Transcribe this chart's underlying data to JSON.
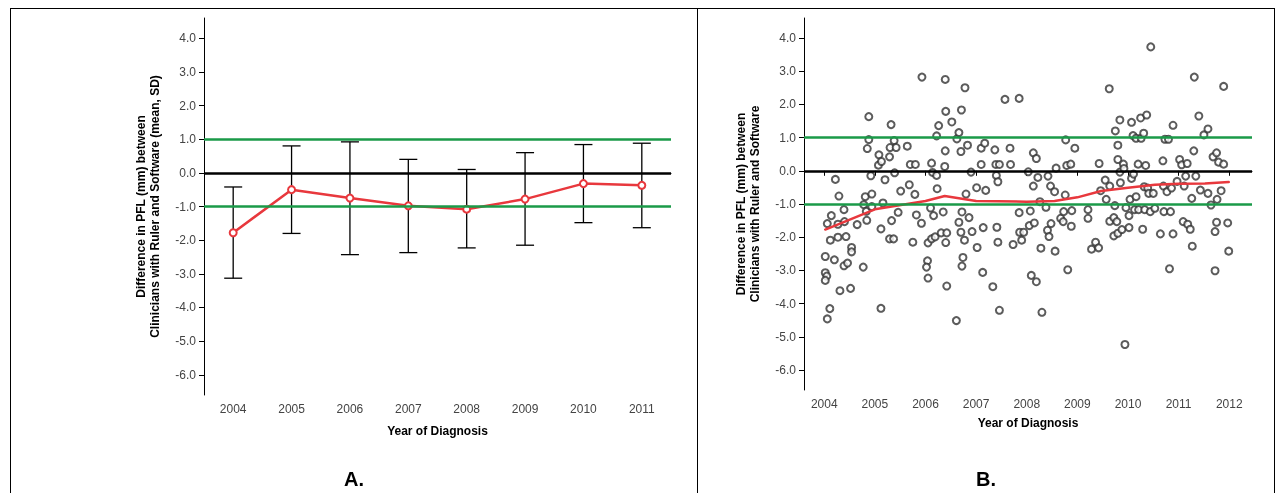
{
  "chart_data": [
    {
      "type": "line",
      "categories": [
        "2004",
        "2005",
        "2006",
        "2007",
        "2008",
        "2009",
        "2010",
        "2011"
      ],
      "series": [
        {
          "color": "#e8383d",
          "values": [
            -1.78,
            -0.5,
            -0.75,
            -0.98,
            -1.08,
            -0.78,
            -0.32,
            -0.37
          ],
          "errors": [
            [
              -3.13,
              -0.42
            ],
            [
              -1.8,
              0.8
            ],
            [
              -2.43,
              0.92
            ],
            [
              -2.37,
              0.4
            ],
            [
              -2.23,
              0.1
            ],
            [
              -2.15,
              0.6
            ],
            [
              -1.48,
              0.84
            ],
            [
              -1.63,
              0.88
            ]
          ]
        }
      ],
      "marker": "circle",
      "xlabel": "Year of Diagnosis",
      "ylabel": "Difference in PFL (mm) between\nClinicians with Ruler and Software (mean, SD)",
      "ylim": [
        -6.6,
        4.6
      ],
      "yticks": [
        {
          "value": -6,
          "label": "-6.0"
        },
        {
          "value": -5,
          "label": "-5.0"
        },
        {
          "value": -4,
          "label": "-4.0"
        },
        {
          "value": -3,
          "label": "-3.0"
        },
        {
          "value": -2,
          "label": "-2.0"
        },
        {
          "value": -1,
          "label": "-1.0"
        },
        {
          "value": 0,
          "label": "0.0"
        },
        {
          "value": 1,
          "label": "1.0"
        },
        {
          "value": 2,
          "label": "2.0"
        },
        {
          "value": 3,
          "label": "3.0"
        },
        {
          "value": 4,
          "label": "4.0"
        }
      ],
      "ref_lines": [
        {
          "axis": "y",
          "value": 1,
          "color": "#1a9a48"
        },
        {
          "axis": "y",
          "value": 0,
          "color": "#000000"
        },
        {
          "axis": "y",
          "value": -1,
          "color": "#1a9a48"
        }
      ],
      "annotations": [
        "A."
      ]
    },
    {
      "type": "scatter",
      "series": [
        {
          "type": "scatter",
          "color": "#333333",
          "marker": "circle",
          "x": [
            2004.02,
            2004.02,
            2004.05,
            2004.02,
            2004.06,
            2004.11,
            2004.06,
            2004.12,
            2004.14,
            2004.2,
            2004.22,
            2004.27,
            2004.27,
            2004.29,
            2004.31,
            2004.39,
            2004.4,
            2004.43,
            2004.39,
            2004.46,
            2004.52,
            2004.54,
            2004.54,
            2004.65,
            2004.77,
            2004.78,
            2004.81,
            2004.83,
            2004.84,
            2004.85,
            2004.88,
            2004.88,
            2004.92,
            2004.94,
            2004.94,
            2005.08,
            2005.07,
            2005.13,
            2005.12,
            2005.12,
            2005.16,
            2005.2,
            2005.29,
            2005.3,
            2005.32,
            2005.33,
            2005.29,
            2005.37,
            2005.38,
            2005.39,
            2005.42,
            2005.46,
            2005.51,
            2005.64,
            2005.68,
            2005.7,
            2005.8,
            2005.75,
            2005.79,
            2005.82,
            2005.92,
            2005.93,
            2006.04,
            2006.02,
            2006.05,
            2006.05,
            2006.1,
            2006.12,
            2006.12,
            2006.14,
            2006.16,
            2006.19,
            2006.22,
            2006.22,
            2006.23,
            2006.26,
            2006.31,
            2006.35,
            2006.38,
            2006.39,
            2006.39,
            2006.4,
            2006.4,
            2006.42,
            2006.42,
            2006.52,
            2006.61,
            2006.62,
            2006.66,
            2006.66,
            2006.7,
            2006.7,
            2006.71,
            2006.72,
            2006.72,
            2006.74,
            2006.77,
            2006.78,
            2006.8,
            2006.83,
            2006.86,
            2006.9,
            2006.92,
            2007.01,
            2007.02,
            2007.1,
            2007.1,
            2007.13,
            2007.14,
            2007.17,
            2007.19,
            2007.33,
            2007.37,
            2007.39,
            2007.4,
            2007.41,
            2007.43,
            2007.43,
            2007.46,
            2007.46,
            2007.57,
            2007.85,
            2007.67,
            2007.68,
            2007.73,
            2007.85,
            2007.86,
            2007.9,
            2007.94,
            2008.03,
            2008.05,
            2008.07,
            2008.09,
            2008.13,
            2008.13,
            2008.15,
            2008.19,
            2008.19,
            2008.22,
            2008.26,
            2008.28,
            2008.3,
            2008.38,
            2008.41,
            2008.42,
            2008.44,
            2008.47,
            2008.48,
            2008.55,
            2008.56,
            2008.58,
            2008.67,
            2008.72,
            2008.73,
            2008.76,
            2008.77,
            2008.79,
            2008.81,
            2008.87,
            2008.88,
            2008.89,
            2008.95,
            2009.21,
            2009.21,
            2009.28,
            2009.36,
            2009.42,
            2009.43,
            2009.46,
            2009.55,
            2009.57,
            2009.63,
            2009.64,
            2009.64,
            2009.72,
            2009.72,
            2009.74,
            2009.75,
            2009.78,
            2009.8,
            2009.8,
            2009.8,
            2009.84,
            2009.84,
            2009.85,
            2009.88,
            2009.91,
            2009.92,
            2009.94,
            2009.96,
            2010.02,
            2010.02,
            2010.04,
            2010.07,
            2010.07,
            2010.1,
            2010.11,
            2010.13,
            2010.16,
            2010.16,
            2010.2,
            2010.21,
            2010.25,
            2010.26,
            2010.29,
            2010.31,
            2010.32,
            2010.33,
            2010.35,
            2010.37,
            2010.39,
            2010.41,
            2010.44,
            2010.45,
            2010.5,
            2010.53,
            2010.64,
            2010.69,
            2010.7,
            2010.71,
            2010.73,
            2010.77,
            2010.8,
            2010.82,
            2010.84,
            2010.86,
            2010.89,
            2010.89,
            2010.97,
            2011.02,
            2011.06,
            2011.09,
            2011.11,
            2011.14,
            2011.17,
            2011.18,
            2011.23,
            2011.26,
            2011.27,
            2011.3,
            2011.31,
            2011.34,
            2011.4,
            2011.43,
            2011.5,
            2011.58,
            2011.58,
            2011.64,
            2011.68,
            2011.72,
            2011.72,
            2011.75,
            2011.75,
            2011.76,
            2011.79,
            2011.84,
            2011.89,
            2011.89,
            2011.97,
            2011.99
          ],
          "values": [
            -2.58,
            -3.07,
            -3.17,
            -3.3,
            -4.46,
            -4.15,
            -1.59,
            -2.09,
            -1.35,
            -2.68,
            -0.26,
            -1.61,
            -2.0,
            -0.76,
            -3.61,
            -1.17,
            -1.53,
            -1.98,
            -2.86,
            -2.78,
            -3.54,
            -2.31,
            -2.44,
            -1.62,
            -2.9,
            -1.02,
            -0.78,
            -1.22,
            -1.49,
            0.67,
            1.63,
            0.94,
            -0.15,
            -0.7,
            -1.08,
            0.48,
            0.17,
            0.28,
            -1.75,
            -4.14,
            -0.97,
            -0.27,
            0.42,
            0.7,
            1.39,
            -1.5,
            -2.05,
            -2.05,
            0.91,
            -0.06,
            0.7,
            -1.25,
            -0.61,
            0.74,
            -0.42,
            0.19,
            0.19,
            -2.15,
            -0.71,
            -1.33,
            -1.58,
            2.82,
            -2.71,
            -2.9,
            -3.23,
            -2.17,
            -1.12,
            -2.05,
            0.23,
            -0.05,
            -1.35,
            -1.99,
            1.05,
            -0.14,
            -0.54,
            1.36,
            -1.87,
            -1.24,
            0.13,
            2.75,
            0.6,
            1.79,
            -2.16,
            -1.87,
            -3.47,
            1.47,
            -4.51,
            0.96,
            1.15,
            -1.55,
            0.58,
            -1.85,
            1.83,
            -1.24,
            -2.87,
            -2.61,
            -2.09,
            2.5,
            -0.7,
            0.77,
            -1.41,
            -0.04,
            -1.83,
            -0.51,
            -2.31,
            0.19,
            0.68,
            -3.06,
            -1.71,
            0.83,
            -0.59,
            -3.49,
            0.63,
            0.19,
            -0.14,
            -1.7,
            -2.15,
            -0.33,
            -4.2,
            0.19,
            2.15,
            2.18,
            0.68,
            0.19,
            -2.22,
            -1.26,
            -1.85,
            -2.09,
            -1.85,
            -0.03,
            -1.65,
            -1.21,
            -3.15,
            0.54,
            -0.46,
            -1.57,
            -3.34,
            0.37,
            -0.2,
            -0.93,
            -2.33,
            -4.26,
            -1.1,
            -1.79,
            -0.16,
            -1.98,
            -0.46,
            -1.59,
            -0.63,
            -2.42,
            0.08,
            -1.43,
            -1.53,
            -1.23,
            -0.73,
            0.93,
            0.16,
            -2.98,
            0.2,
            -1.67,
            -1.2,
            0.68,
            -1.43,
            -1.17,
            -2.36,
            -2.15,
            -2.32,
            0.22,
            -0.6,
            -0.28,
            -0.86,
            2.47,
            -1.52,
            -0.46,
            -1.41,
            -1.96,
            -1.05,
            1.2,
            -1.53,
            0.77,
            -1.88,
            0.34,
            1.53,
            -0.04,
            -0.36,
            -1.77,
            0.2,
            0.07,
            -5.23,
            -1.11,
            -1.35,
            -1.71,
            -0.86,
            1.46,
            -0.23,
            1.06,
            -0.1,
            -1.17,
            -0.78,
            0.98,
            0.2,
            -1.17,
            1.59,
            0.98,
            -1.76,
            1.13,
            -0.48,
            -1.17,
            0.16,
            1.68,
            -0.52,
            -0.68,
            -1.23,
            3.73,
            -0.68,
            -1.13,
            -1.9,
            0.3,
            -0.46,
            -1.23,
            0.95,
            -0.63,
            0.95,
            -2.95,
            -1.23,
            -0.52,
            1.37,
            -1.9,
            -0.32,
            0.34,
            0.18,
            -1.53,
            -0.46,
            -0.16,
            0.22,
            -1.61,
            -1.76,
            -0.83,
            -2.27,
            0.6,
            2.82,
            -0.16,
            1.65,
            -0.58,
            1.08,
            1.26,
            -0.68,
            -1.03,
            0.42,
            -3.01,
            -1.83,
            -1.55,
            0.54,
            -0.86,
            0.26,
            -0.6,
            2.54,
            0.2,
            -1.57,
            -2.42
          ]
        },
        {
          "type": "line",
          "color": "#e8383d",
          "marker": "none",
          "x": [
            2004.02,
            2005,
            2006,
            2006.38,
            2007,
            2008,
            2008.55,
            2009,
            2009.47,
            2010,
            2010.53,
            2011,
            2011.52,
            2011.99
          ],
          "values": [
            -1.77,
            -1.16,
            -0.91,
            -0.76,
            -0.91,
            -0.93,
            -0.91,
            -0.8,
            -0.61,
            -0.51,
            -0.42,
            -0.39,
            -0.38,
            -0.34
          ]
        }
      ],
      "xlabel": "Year of Diagnosis",
      "ylabel": "Difference in PFL (mm) between\nClinicians with Ruler and Software",
      "xlim": [
        2003.6,
        2012.45
      ],
      "xticks": [
        2004,
        2005,
        2006,
        2007,
        2008,
        2009,
        2010,
        2011,
        2012
      ],
      "ylim": [
        -6.6,
        4.6
      ],
      "yticks": [
        {
          "value": -6,
          "label": "-6.0"
        },
        {
          "value": -5,
          "label": "-5.0"
        },
        {
          "value": -4,
          "label": "-4.0"
        },
        {
          "value": -3,
          "label": "-3.0"
        },
        {
          "value": -2,
          "label": "-2.0"
        },
        {
          "value": -1,
          "label": "-1.0"
        },
        {
          "value": 0,
          "label": "0.0"
        },
        {
          "value": 1,
          "label": "1.0"
        },
        {
          "value": 2,
          "label": "2.0"
        },
        {
          "value": 3,
          "label": "3.0"
        },
        {
          "value": 4,
          "label": "4.0"
        }
      ],
      "ref_lines": [
        {
          "axis": "y",
          "value": 1,
          "color": "#1a9a48"
        },
        {
          "axis": "y",
          "value": 0,
          "color": "#000000"
        },
        {
          "axis": "y",
          "value": -1,
          "color": "#1a9a48"
        }
      ],
      "annotations": [
        "B."
      ]
    }
  ]
}
